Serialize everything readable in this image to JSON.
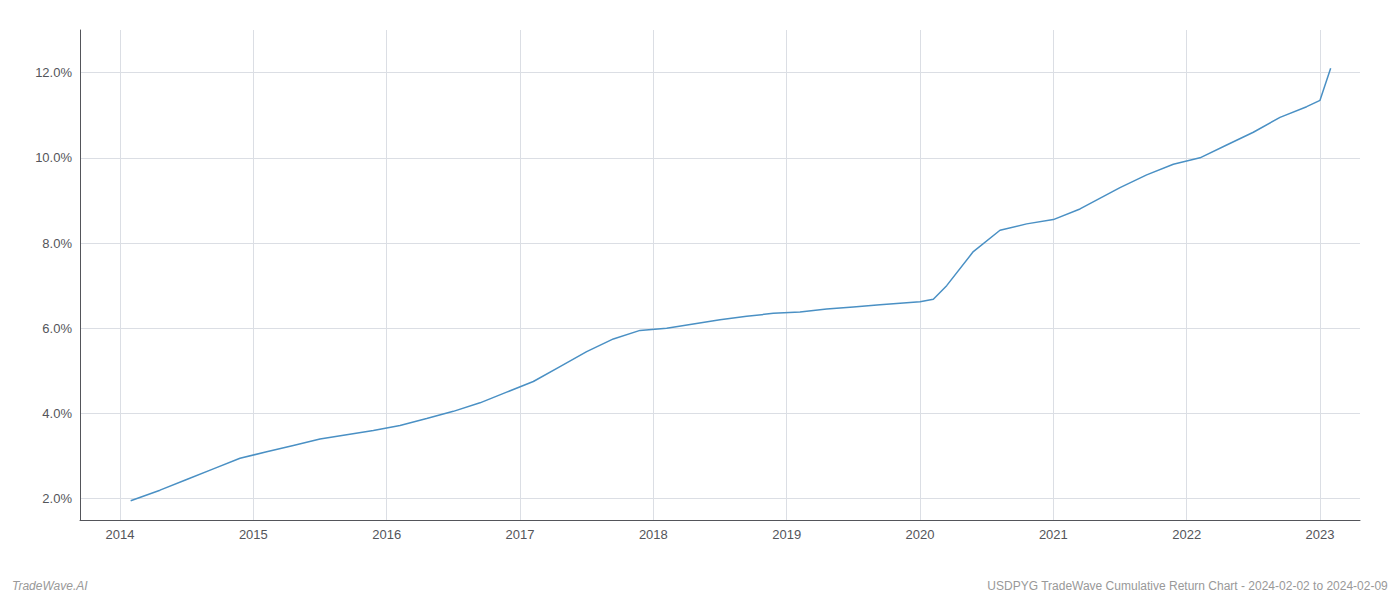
{
  "chart_data": {
    "type": "line",
    "annotations": [
      "TradeWave.AI",
      "USDPYG TradeWave Cumulative Return Chart - 2024-02-02 to 2024-02-09"
    ],
    "x": [
      2014.08,
      2014.3,
      2014.5,
      2014.7,
      2014.9,
      2015.1,
      2015.3,
      2015.5,
      2015.7,
      2015.9,
      2016.1,
      2016.3,
      2016.5,
      2016.7,
      2016.9,
      2017.1,
      2017.3,
      2017.5,
      2017.7,
      2017.9,
      2018.1,
      2018.3,
      2018.5,
      2018.7,
      2018.9,
      2019.1,
      2019.3,
      2019.5,
      2019.7,
      2019.9,
      2020.0,
      2020.1,
      2020.2,
      2020.4,
      2020.6,
      2020.8,
      2021.0,
      2021.2,
      2021.5,
      2021.7,
      2021.9,
      2022.1,
      2022.3,
      2022.5,
      2022.7,
      2022.9,
      2023.0,
      2023.08
    ],
    "values": [
      1.95,
      2.2,
      2.45,
      2.7,
      2.95,
      3.1,
      3.25,
      3.4,
      3.5,
      3.6,
      3.72,
      3.88,
      4.05,
      4.25,
      4.5,
      4.75,
      5.1,
      5.45,
      5.75,
      5.95,
      6.0,
      6.1,
      6.2,
      6.28,
      6.35,
      6.38,
      6.45,
      6.5,
      6.55,
      6.6,
      6.62,
      6.68,
      7.0,
      7.8,
      8.3,
      8.45,
      8.55,
      8.8,
      9.3,
      9.6,
      9.85,
      10.0,
      10.3,
      10.6,
      10.95,
      11.2,
      11.35,
      12.1
    ],
    "color": "#4a90c4",
    "xlim": [
      2013.7,
      2023.3
    ],
    "xticks": [
      2014,
      2015,
      2016,
      2017,
      2018,
      2019,
      2020,
      2021,
      2022,
      2023
    ],
    "ylim": [
      1.5,
      13.0
    ],
    "yticks": [
      {
        "value": 2.0,
        "label": "2.0%"
      },
      {
        "value": 4.0,
        "label": "4.0%"
      },
      {
        "value": 6.0,
        "label": "6.0%"
      },
      {
        "value": 8.0,
        "label": "8.0%"
      },
      {
        "value": 10.0,
        "label": "10.0%"
      },
      {
        "value": 12.0,
        "label": "12.0%"
      }
    ],
    "grid": true
  }
}
